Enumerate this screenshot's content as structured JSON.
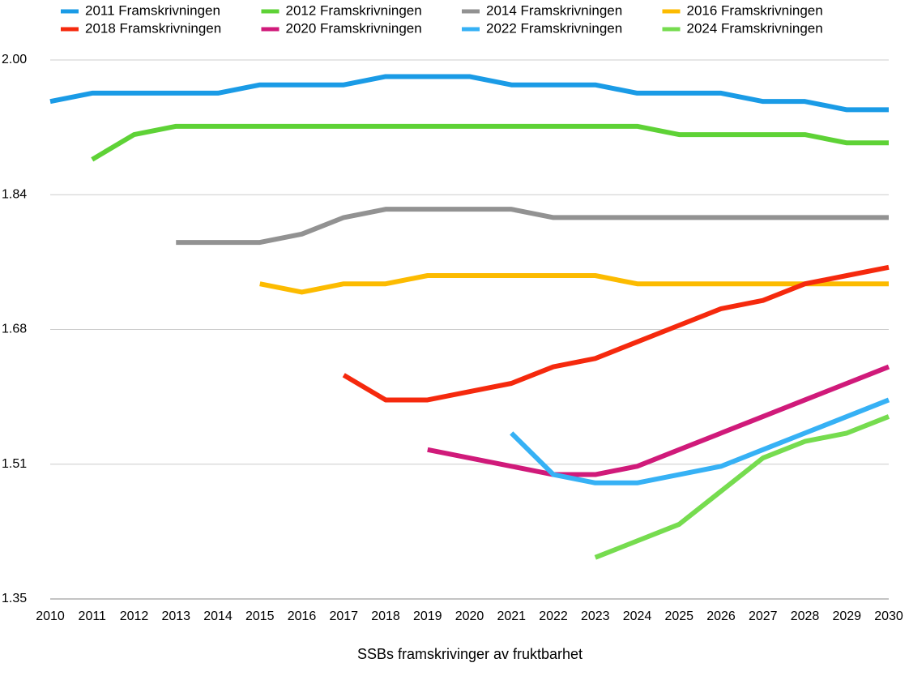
{
  "chart_data": {
    "type": "line",
    "x_label": "SSBs framskrivinger av fruktbarhet",
    "categories": [
      "2010",
      "2011",
      "2012",
      "2013",
      "2014",
      "2015",
      "2016",
      "2017",
      "2018",
      "2019",
      "2020",
      "2021",
      "2022",
      "2023",
      "2024",
      "2025",
      "2026",
      "2027",
      "2028",
      "2029",
      "2030"
    ],
    "ylim": [
      1.35,
      2.0
    ],
    "yticks": [
      {
        "value": 1.35,
        "label": "1.35"
      },
      {
        "value": 1.5125,
        "label": "1.51"
      },
      {
        "value": 1.675,
        "label": "1.68"
      },
      {
        "value": 1.8375,
        "label": "1.84"
      },
      {
        "value": 2.0,
        "label": "2.00"
      }
    ],
    "grid": true,
    "legend": "top",
    "series": [
      {
        "name": "2011 Framskrivningen",
        "color": "#1a9be6",
        "values": [
          1.95,
          1.96,
          1.96,
          1.96,
          1.96,
          1.97,
          1.97,
          1.97,
          1.98,
          1.98,
          1.98,
          1.97,
          1.97,
          1.97,
          1.96,
          1.96,
          1.96,
          1.95,
          1.95,
          1.94,
          1.94
        ]
      },
      {
        "name": "2012 Framskrivningen",
        "color": "#5ed236",
        "values": [
          null,
          1.88,
          1.91,
          1.92,
          1.92,
          1.92,
          1.92,
          1.92,
          1.92,
          1.92,
          1.92,
          1.92,
          1.92,
          1.92,
          1.92,
          1.91,
          1.91,
          1.91,
          1.91,
          1.9,
          1.9
        ]
      },
      {
        "name": "2014 Framskrivningen",
        "color": "#929292",
        "values": [
          null,
          null,
          null,
          1.78,
          1.78,
          1.78,
          1.79,
          1.81,
          1.82,
          1.82,
          1.82,
          1.82,
          1.81,
          1.81,
          1.81,
          1.81,
          1.81,
          1.81,
          1.81,
          1.81,
          1.81
        ]
      },
      {
        "name": "2016 Framskrivningen",
        "color": "#fcbb00",
        "values": [
          null,
          null,
          null,
          null,
          null,
          1.73,
          1.72,
          1.73,
          1.73,
          1.74,
          1.74,
          1.74,
          1.74,
          1.74,
          1.73,
          1.73,
          1.73,
          1.73,
          1.73,
          1.73,
          1.73
        ]
      },
      {
        "name": "2018 Framskrivningen",
        "color": "#f5290d",
        "values": [
          null,
          null,
          null,
          null,
          null,
          null,
          null,
          1.62,
          1.59,
          1.59,
          1.6,
          1.61,
          1.63,
          1.64,
          1.66,
          1.68,
          1.7,
          1.71,
          1.73,
          1.74,
          1.75
        ]
      },
      {
        "name": "2020 Framskrivningen",
        "color": "#d01a7a",
        "values": [
          null,
          null,
          null,
          null,
          null,
          null,
          null,
          null,
          null,
          1.53,
          1.52,
          1.51,
          1.5,
          1.5,
          1.51,
          1.53,
          1.55,
          1.57,
          1.59,
          1.61,
          1.63
        ]
      },
      {
        "name": "2022 Framskrivningen",
        "color": "#36b1f5",
        "values": [
          null,
          null,
          null,
          null,
          null,
          null,
          null,
          null,
          null,
          null,
          null,
          1.55,
          1.5,
          1.49,
          1.49,
          1.5,
          1.51,
          1.53,
          1.55,
          1.57,
          1.59
        ]
      },
      {
        "name": "2024 Framskrivningen",
        "color": "#76dc4f",
        "values": [
          null,
          null,
          null,
          null,
          null,
          null,
          null,
          null,
          null,
          null,
          null,
          null,
          null,
          1.4,
          1.42,
          1.44,
          1.48,
          1.52,
          1.54,
          1.55,
          1.57
        ]
      }
    ]
  }
}
